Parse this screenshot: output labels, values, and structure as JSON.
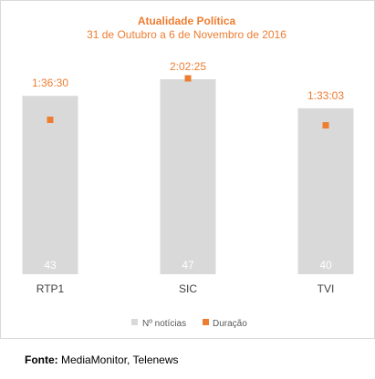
{
  "chart_data": {
    "type": "bar",
    "title": "Atualidade Política",
    "subtitle": "31 de Outubro a 6 de Novembro de 2016",
    "categories": [
      "RTP1",
      "SIC",
      "TVI"
    ],
    "series": [
      {
        "name": "Nº notícias",
        "type": "bar",
        "values": [
          43,
          47,
          40
        ],
        "color": "#d9d9d9",
        "label_color": "#ffffff"
      },
      {
        "name": "Duração",
        "type": "marker",
        "values": [
          5790,
          7345,
          5583
        ],
        "labels": [
          "1:36:30",
          "2:02:25",
          "1:33:03"
        ],
        "color": "#ed7d31"
      }
    ],
    "ylim_bars": [
      0,
      47
    ],
    "ylim_duration": [
      0,
      7345
    ],
    "grid": false,
    "legend": "bottom-center"
  },
  "source": {
    "label": "Fonte:",
    "text": "MediaMonitor, Telenews"
  }
}
